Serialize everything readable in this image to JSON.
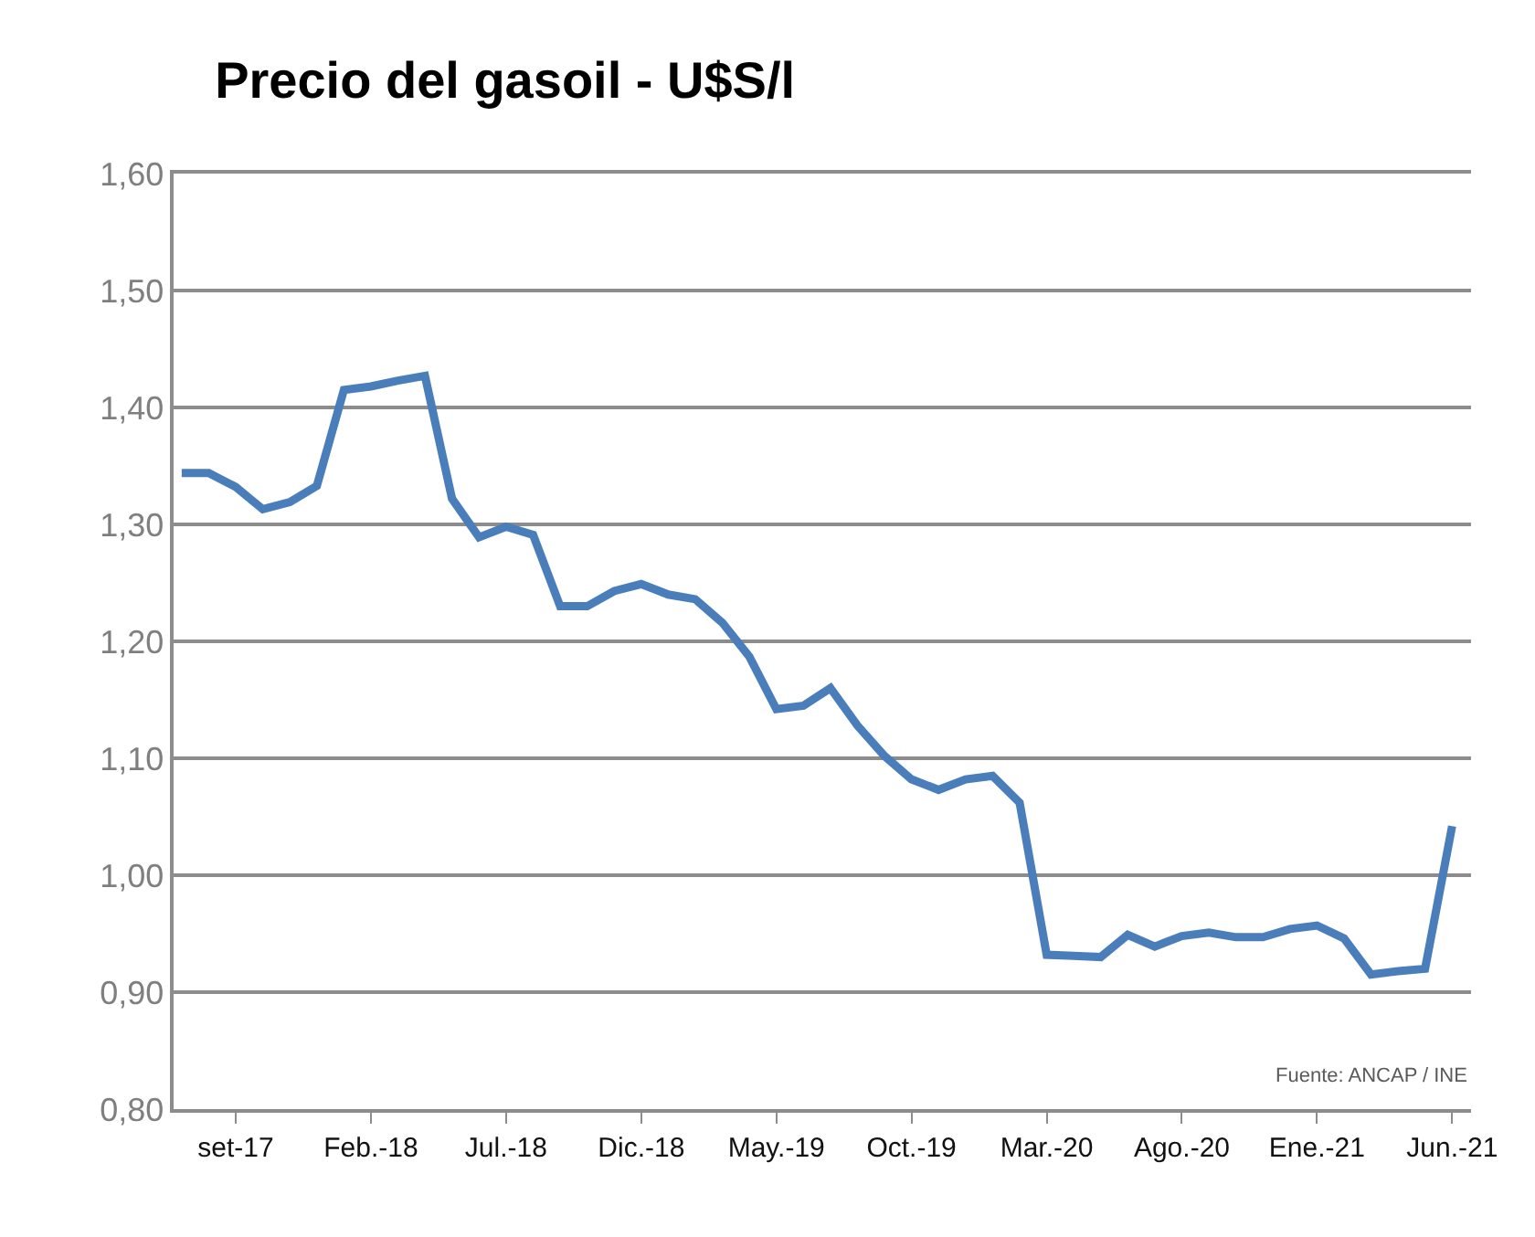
{
  "chart_data": {
    "type": "line",
    "title": "Precio del gasoil - U$S/l",
    "categories": [
      null,
      null,
      "set-17",
      null,
      null,
      null,
      null,
      "Feb.-18",
      null,
      null,
      null,
      null,
      "Jul.-18",
      null,
      null,
      null,
      null,
      "Dic.-18",
      null,
      null,
      null,
      null,
      "May.-19",
      null,
      null,
      null,
      null,
      "Oct.-19",
      null,
      null,
      null,
      null,
      "Mar.-20",
      null,
      null,
      null,
      null,
      "Ago.-20",
      null,
      null,
      null,
      null,
      "Ene.-21",
      null,
      null,
      null,
      null,
      "Jun.-21"
    ],
    "series": [
      {
        "color": "#4a7ebb",
        "values": [
          1.344,
          1.344,
          1.332,
          1.313,
          1.319,
          1.333,
          1.415,
          1.418,
          1.423,
          1.427,
          1.322,
          1.289,
          1.298,
          1.291,
          1.23,
          1.23,
          1.243,
          1.249,
          1.24,
          1.236,
          1.216,
          1.187,
          1.142,
          1.145,
          1.16,
          1.128,
          1.102,
          1.082,
          1.073,
          1.082,
          1.085,
          1.062,
          0.932,
          0.931,
          0.93,
          0.949,
          0.939,
          0.948,
          0.951,
          0.947,
          0.947,
          0.954,
          0.957,
          0.946,
          0.915,
          0.918,
          0.92,
          1.042
        ]
      }
    ],
    "ylim": [
      0.8,
      1.6
    ],
    "yticks": [
      {
        "value": 0.8,
        "label": "0,80"
      },
      {
        "value": 0.9,
        "label": "0,90"
      },
      {
        "value": 1.0,
        "label": "1,00"
      },
      {
        "value": 1.1,
        "label": "1,10"
      },
      {
        "value": 1.2,
        "label": "1,20"
      },
      {
        "value": 1.3,
        "label": "1,30"
      },
      {
        "value": 1.4,
        "label": "1,40"
      },
      {
        "value": 1.5,
        "label": "1,50"
      },
      {
        "value": 1.6,
        "label": "1,60"
      }
    ],
    "grid": "y",
    "marker": "none",
    "line_style": "solid",
    "annotations": [
      "Fuente: ANCAP / INE"
    ]
  }
}
